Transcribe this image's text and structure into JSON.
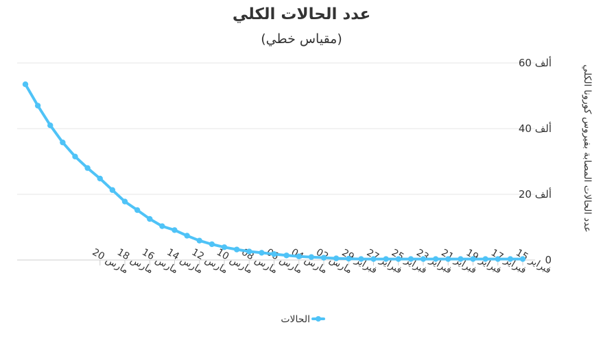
{
  "chart_data": {
    "type": "line",
    "title": "عدد الحالات الكلي",
    "subtitle": "(مقياس خطي)",
    "ylabel": "عدد الحالات المصابة بفيروس كورونا الكلي",
    "xlabel": "",
    "x_direction": "right-to-left",
    "ylim": [
      0,
      60000
    ],
    "y_ticks": [
      {
        "value": 0,
        "label": "0"
      },
      {
        "value": 20000,
        "label": "20 ألف"
      },
      {
        "value": 40000,
        "label": "40 ألف"
      },
      {
        "value": 60000,
        "label": "60 ألف"
      }
    ],
    "x_tick_labels": [
      "15 فبراير",
      "17 فبراير",
      "19 فبراير",
      "21 فبراير",
      "23 فبراير",
      "25 فبراير",
      "27 فبراير",
      "29 فبراير",
      "02 مارس",
      "04 مارس",
      "06 مارس",
      "08 مارس",
      "10 مارس",
      "12 مارس",
      "14 مارس",
      "16 مارس",
      "18 مارس",
      "20 مارس"
    ],
    "grid": true,
    "legend_position": "bottom-center",
    "series_color": "#4fc3f7",
    "series": [
      {
        "name": "الحالات",
        "values": [
          300,
          300,
          300,
          300,
          300,
          300,
          300,
          300,
          300,
          300,
          300,
          300,
          300,
          300,
          400,
          500,
          700,
          900,
          1100,
          1400,
          1800,
          2200,
          2600,
          3200,
          3900,
          4800,
          5900,
          7400,
          9100,
          10300,
          12500,
          15200,
          17800,
          21300,
          24800,
          28000,
          31500,
          35800,
          41000,
          47000,
          53500
        ]
      }
    ]
  }
}
